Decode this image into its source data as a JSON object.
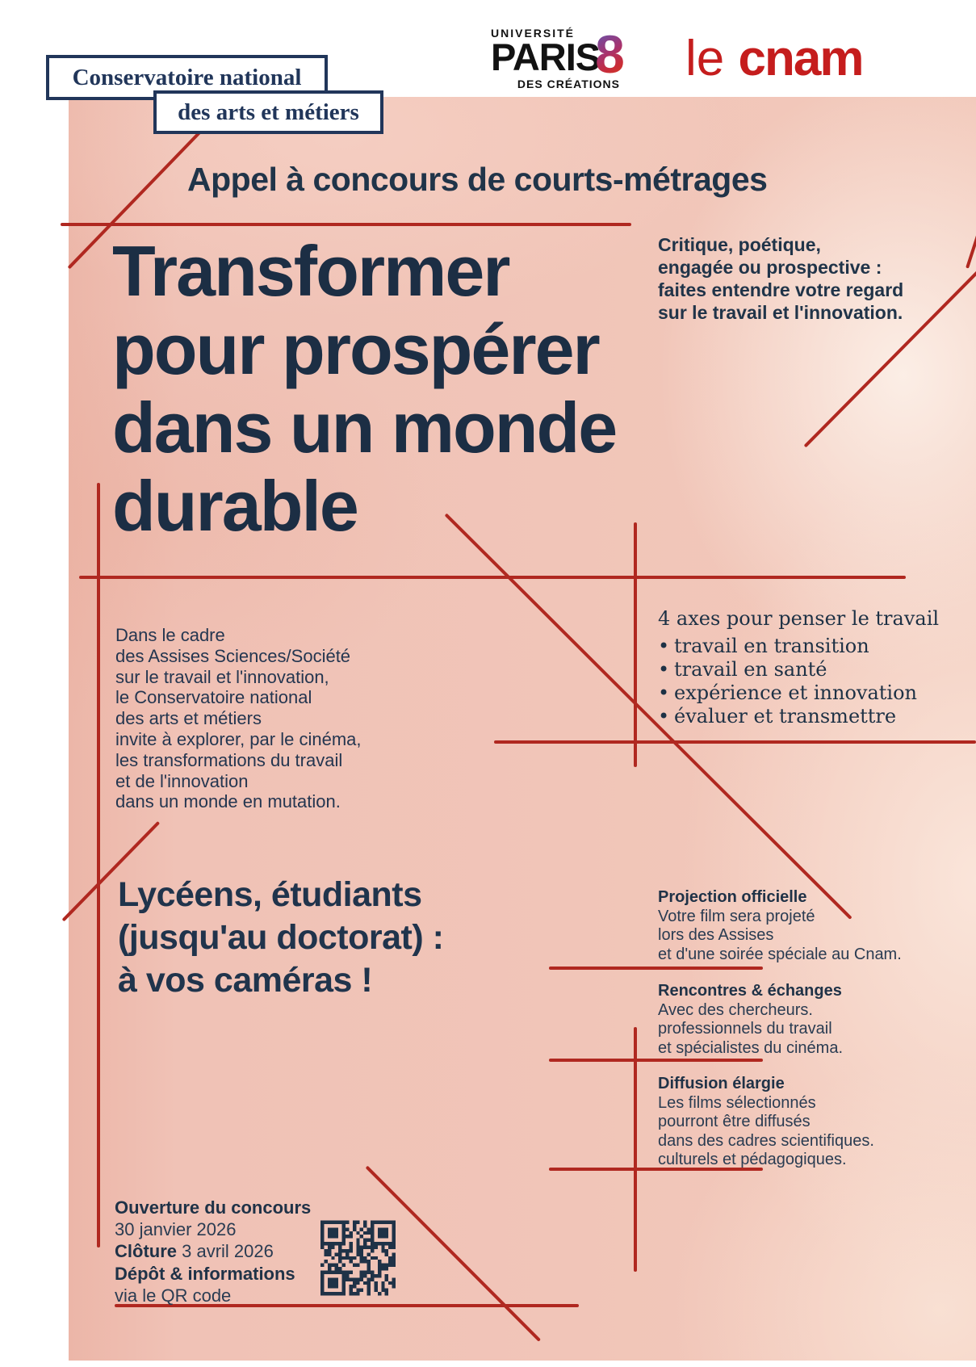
{
  "logos": {
    "cnam_box": {
      "line1": "Conservatoire national",
      "line2": "des arts et métiers"
    },
    "paris8": {
      "university": "UNIVERSITÉ",
      "paris": "PARIS",
      "eight": "8",
      "subtitle": "DES CRÉATIONS"
    },
    "lecnam": {
      "le": "le ",
      "cnam": "cnam"
    }
  },
  "header": {
    "kicker": "Appel à concours de courts-métrages"
  },
  "title": {
    "line1": "Transformer",
    "line2": "pour prospérer",
    "line3": "dans un monde",
    "line4": "durable"
  },
  "intro_right": {
    "line1": "Critique, poétique,",
    "line2": "engagée ou prospective :",
    "line3": "faites entendre votre regard",
    "line4": "sur le travail et l'innovation."
  },
  "about": {
    "line1": "Dans le cadre",
    "line2": "des Assises Sciences/Société",
    "line3": "sur le travail et l'innovation,",
    "line4": "le Conservatoire national",
    "line5": "des arts et métiers",
    "line6": "invite à explorer, par le cinéma,",
    "line7": "les transformations du travail",
    "line8": "et de l'innovation",
    "line9": "dans un monde en mutation."
  },
  "axes": {
    "title": "4 axes pour penser le travail",
    "bullet": "•",
    "items": [
      "travail en transition",
      "travail en santé",
      "expérience et innovation",
      "évaluer et transmettre"
    ]
  },
  "audience": {
    "line1": "Lycéens, étudiants",
    "line2": "(jusqu'au doctorat) :",
    "line3": "à vos caméras !"
  },
  "benefits": [
    {
      "title": "Projection officielle",
      "lines": [
        "Votre film sera projeté",
        "lors des Assises",
        "et d'une soirée spéciale au Cnam."
      ]
    },
    {
      "title": "Rencontres & échanges",
      "lines": [
        "Avec des chercheurs.",
        "professionnels du travail",
        "et spécialistes du cinéma."
      ]
    },
    {
      "title": "Diffusion élargie",
      "lines": [
        "Les films sélectionnés",
        "pourront être diffusés",
        "dans des cadres scientifiques.",
        "culturels et pédagogiques."
      ]
    }
  ],
  "footer": {
    "open_label": "Ouverture du concours",
    "open_date": "30 janvier 2026",
    "close_label": "Clôture",
    "close_date": " 3 avril 2026",
    "deposit_label": "Dépôt & informations",
    "deposit_line": "via le QR code"
  },
  "colors": {
    "navy": "#1f3247",
    "line_red": "#b02820",
    "cnam_red": "#c51d1d",
    "paper_pink": "#f0c2b6"
  }
}
